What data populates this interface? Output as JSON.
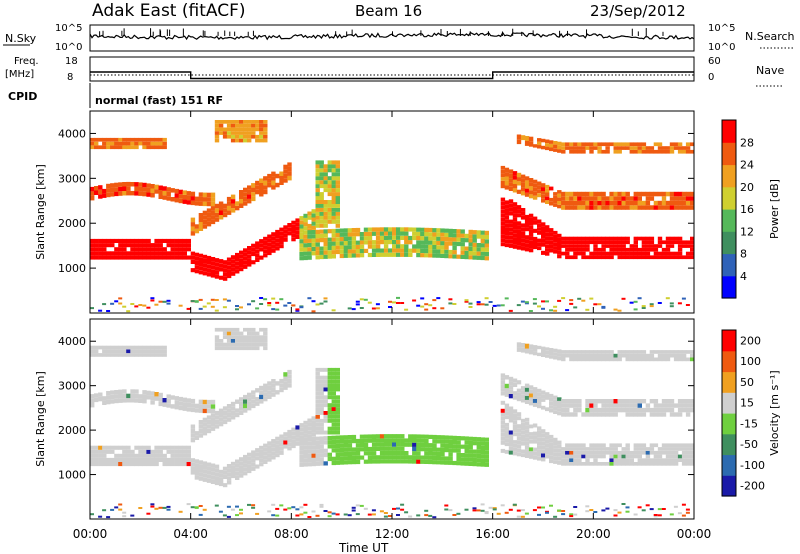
{
  "header": {
    "station": "Adak East (fitACF)",
    "beam": "Beam 16",
    "date": "23/Sep/2012"
  },
  "status_panels": {
    "nsky_label": "N.Sky",
    "nsky_ticks": [
      "10^5",
      "10^0"
    ],
    "nsearch_label": "N.Search",
    "nsearch_ticks": [
      "10^5",
      "10^0"
    ],
    "freq_label_top": "Freq.",
    "freq_label_unit": "[MHz]",
    "freq_ticks": [
      "18",
      "8"
    ],
    "nave_label": "Nave",
    "nave_ticks": [
      "60",
      "0"
    ],
    "cpid_label": "CPID",
    "cpid_text": "normal (fast) 151 RF"
  },
  "chart_data": [
    {
      "type": "heatmap",
      "panel": "power",
      "ylabel": "Slant Range [km]",
      "yticks": [
        1000,
        2000,
        3000,
        4000
      ],
      "ylim": [
        0,
        4500
      ],
      "x_ticks": [
        "00:00",
        "04:00",
        "08:00",
        "12:00",
        "16:00",
        "20:00",
        "00:00"
      ],
      "xlim_hours": [
        0,
        24
      ],
      "colorbar": {
        "label": "Power [dB]",
        "ticks": [
          "4",
          "8",
          "12",
          "16",
          "20",
          "24",
          "28"
        ],
        "colors": [
          "#0000ff",
          "#2f62b8",
          "#3f8f5f",
          "#55b85a",
          "#cfcf30",
          "#f0a020",
          "#ef5a10",
          "#ff0000"
        ]
      }
    },
    {
      "type": "heatmap",
      "panel": "velocity",
      "ylabel": "Slant Range [km]",
      "yticks": [
        1000,
        2000,
        3000,
        4000
      ],
      "ylim": [
        0,
        4500
      ],
      "x_ticks": [
        "00:00",
        "04:00",
        "08:00",
        "12:00",
        "16:00",
        "20:00",
        "00:00"
      ],
      "xlim_hours": [
        0,
        24
      ],
      "xlabel": "Time UT",
      "colorbar": {
        "label": "Velocity [m s⁻¹]",
        "ticks": [
          "200",
          "100",
          "50",
          "15",
          "-15",
          "-50",
          "-100",
          "-200"
        ],
        "colors": [
          "#1a1aa8",
          "#2c6bb0",
          "#3f8f5f",
          "#6fcf3f",
          "#cfcfcf",
          "#f0a020",
          "#ef5a10",
          "#ff0000"
        ]
      }
    }
  ],
  "freq_series": {
    "x_hours": [
      0,
      4.0,
      4.0,
      16.0,
      16.0,
      24
    ],
    "freq_mhz": [
      13.0,
      13.0,
      10.3,
      10.3,
      13.0,
      13.0
    ]
  },
  "nave_series": {
    "x_hours": [
      0,
      24
    ],
    "nave": [
      20,
      20
    ]
  }
}
